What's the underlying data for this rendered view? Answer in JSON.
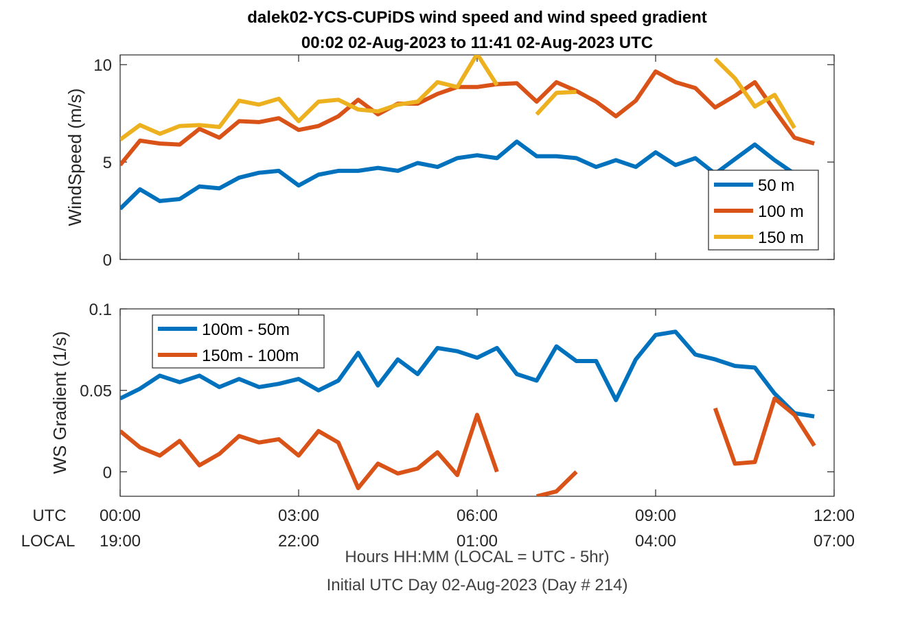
{
  "title_line1": "dalek02-YCS-CUPiDS  wind speed and wind speed gradient",
  "title_line2": "00:02 02-Aug-2023 to 11:41 02-Aug-2023  UTC",
  "row_label_utc": "UTC",
  "row_label_local": "LOCAL",
  "xaxis_caption": "Hours HH:MM  (LOCAL = UTC - 5hr)",
  "xaxis_caption2": "Initial UTC Day 02-Aug-2023 (Day # 214)",
  "colors": {
    "blue": "#0072BD",
    "orange": "#D95319",
    "yellow": "#EDB120"
  },
  "chart_data": [
    {
      "type": "line",
      "ylabel": "WindSpeed (m/s)",
      "ylim": [
        0,
        10.5
      ],
      "yticks": [
        0,
        5,
        10
      ],
      "yticklabels": [
        "0",
        "5",
        "10"
      ],
      "xlim": [
        0,
        12
      ],
      "xticks": [
        0,
        3,
        6,
        9,
        12
      ],
      "xticklabels_utc": [
        "00:00",
        "03:00",
        "06:00",
        "09:00",
        "12:00"
      ],
      "xticklabels_local": [
        "19:00",
        "22:00",
        "01:00",
        "04:00",
        "07:00"
      ],
      "grid": false,
      "legend_position": "right",
      "x": [
        0,
        0.333,
        0.667,
        1.0,
        1.333,
        1.667,
        2.0,
        2.333,
        2.667,
        3.0,
        3.333,
        3.667,
        4.0,
        4.333,
        4.667,
        5.0,
        5.333,
        5.667,
        6.0,
        6.333,
        6.667,
        7.0,
        7.333,
        7.667,
        8.0,
        8.333,
        8.667,
        9.0,
        9.333,
        9.667,
        10.0,
        10.333,
        10.667,
        11.0,
        11.333,
        11.667
      ],
      "series": [
        {
          "name": "50 m",
          "color": "blue",
          "values": [
            2.6,
            3.6,
            3.0,
            3.1,
            3.75,
            3.65,
            4.2,
            4.45,
            4.55,
            3.8,
            4.35,
            4.55,
            4.55,
            4.7,
            4.55,
            4.95,
            4.75,
            5.2,
            5.35,
            5.2,
            6.05,
            5.3,
            5.3,
            5.2,
            4.75,
            5.1,
            4.75,
            5.5,
            4.85,
            5.2,
            4.4,
            5.15,
            5.9,
            5.1,
            4.4,
            null
          ]
        },
        {
          "name": "100 m",
          "color": "orange",
          "values": [
            4.85,
            6.1,
            5.95,
            5.9,
            6.7,
            6.25,
            7.1,
            7.05,
            7.25,
            6.65,
            6.85,
            7.35,
            8.2,
            7.45,
            8.0,
            8.0,
            8.5,
            8.85,
            8.85,
            9.0,
            9.05,
            8.1,
            9.1,
            8.65,
            8.1,
            7.35,
            8.15,
            9.65,
            9.1,
            8.8,
            7.8,
            8.4,
            9.1,
            7.65,
            6.25,
            5.95
          ]
        },
        {
          "name": "150 m",
          "color": "yellow",
          "values": [
            6.15,
            6.9,
            6.45,
            6.85,
            6.9,
            6.8,
            8.15,
            7.95,
            8.25,
            7.1,
            8.1,
            8.2,
            7.7,
            7.6,
            7.95,
            8.1,
            9.1,
            8.85,
            10.55,
            8.95,
            null,
            7.45,
            8.55,
            8.6,
            null,
            null,
            null,
            null,
            null,
            null,
            10.3,
            9.3,
            7.85,
            8.45,
            6.75,
            null
          ]
        }
      ]
    },
    {
      "type": "line",
      "ylabel": "WS Gradient (1/s)",
      "ylim": [
        -0.015,
        0.1
      ],
      "yticks": [
        0,
        0.05,
        0.1
      ],
      "yticklabels": [
        "0",
        "0.05",
        "0.1"
      ],
      "xlim": [
        0,
        12
      ],
      "xticks": [
        0,
        3,
        6,
        9,
        12
      ],
      "grid": false,
      "legend_position": "top-left",
      "x": [
        0,
        0.333,
        0.667,
        1.0,
        1.333,
        1.667,
        2.0,
        2.333,
        2.667,
        3.0,
        3.333,
        3.667,
        4.0,
        4.333,
        4.667,
        5.0,
        5.333,
        5.667,
        6.0,
        6.333,
        6.667,
        7.0,
        7.333,
        7.667,
        8.0,
        8.333,
        8.667,
        9.0,
        9.333,
        9.667,
        10.0,
        10.333,
        10.667,
        11.0,
        11.333,
        11.667
      ],
      "series": [
        {
          "name": "100m - 50m",
          "color": "blue",
          "values": [
            0.045,
            0.051,
            0.059,
            0.055,
            0.059,
            0.052,
            0.057,
            0.052,
            0.054,
            0.057,
            0.05,
            0.056,
            0.073,
            0.053,
            0.069,
            0.06,
            0.076,
            0.074,
            0.07,
            0.076,
            0.06,
            0.056,
            0.077,
            0.068,
            0.068,
            0.044,
            0.069,
            0.084,
            0.086,
            0.072,
            0.069,
            0.065,
            0.064,
            0.048,
            0.036,
            0.034
          ]
        },
        {
          "name": "150m - 100m",
          "color": "orange",
          "values": [
            0.025,
            0.015,
            0.01,
            0.019,
            0.004,
            0.011,
            0.022,
            0.018,
            0.02,
            0.01,
            0.025,
            0.018,
            -0.01,
            0.005,
            -0.001,
            0.002,
            0.012,
            -0.002,
            0.035,
            0.0,
            null,
            -0.015,
            -0.012,
            0.0,
            null,
            null,
            null,
            null,
            null,
            null,
            0.039,
            0.005,
            0.006,
            0.045,
            0.035,
            0.016
          ]
        }
      ]
    }
  ]
}
